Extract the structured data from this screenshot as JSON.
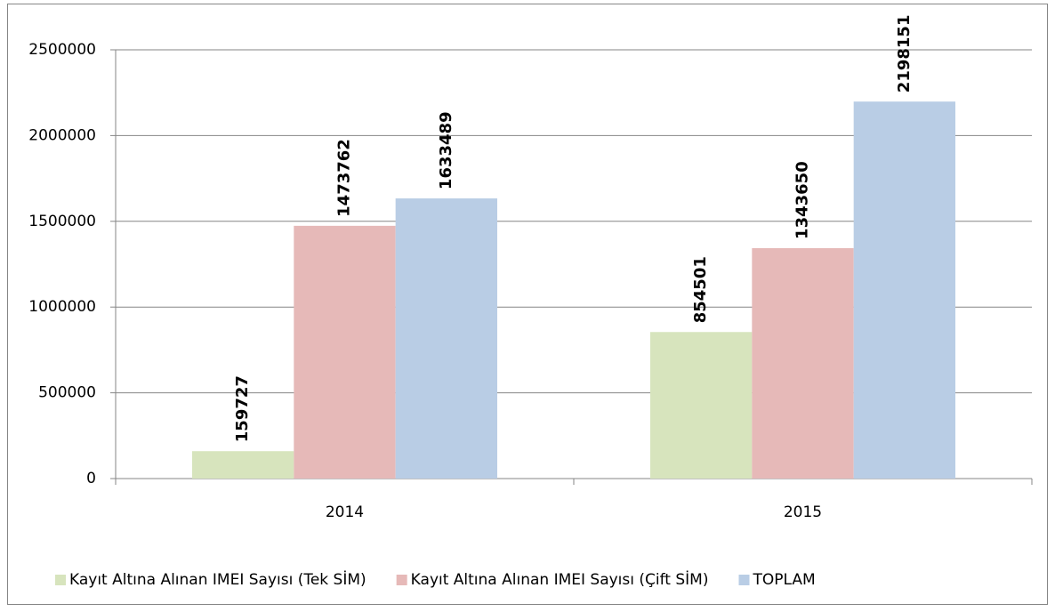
{
  "chart_data": {
    "type": "bar",
    "categories": [
      "2014",
      "2015"
    ],
    "series": [
      {
        "name": "Kayıt Altına Alınan IMEI Sayısı (Tek SİM)",
        "color": "#d7e4bd",
        "values": [
          159727,
          854501
        ]
      },
      {
        "name": "Kayıt Altına Alınan IMEI Sayısı (Çift SİM)",
        "color": "#e6b9b8",
        "values": [
          1473762,
          1343650
        ]
      },
      {
        "name": "TOPLAM",
        "color": "#b9cde5",
        "values": [
          1633489,
          2198151
        ]
      }
    ],
    "ylim": [
      0,
      2500000
    ],
    "yticks": [
      0,
      500000,
      1000000,
      1500000,
      2000000,
      2500000
    ],
    "grid": true,
    "legend": "bottom"
  }
}
